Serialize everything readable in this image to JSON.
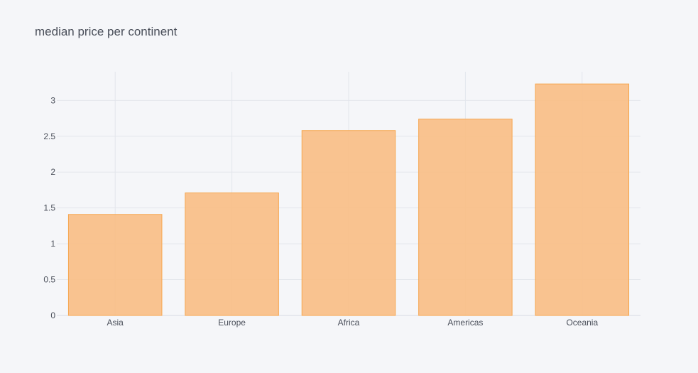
{
  "chart_data": {
    "type": "bar",
    "title": "median price per continent",
    "xlabel": "",
    "ylabel": "",
    "categories": [
      "Asia",
      "Europe",
      "Africa",
      "Americas",
      "Oceania"
    ],
    "values": [
      1.41,
      1.71,
      2.58,
      2.74,
      3.23
    ],
    "ylim": [
      0,
      3.4
    ],
    "yticks": [
      0,
      0.5,
      1,
      1.5,
      2,
      2.5,
      3
    ],
    "ytick_labels": [
      "0",
      "0.5",
      "1",
      "1.5",
      "2",
      "2.5",
      "3"
    ],
    "grid": true,
    "legend": "none",
    "colors": {
      "background": "#f5f6f9",
      "bar_fill": "#f9be84",
      "bar_stroke": "#f6a64f",
      "grid": "#e3e6ec",
      "text": "#4a4f5a"
    }
  }
}
